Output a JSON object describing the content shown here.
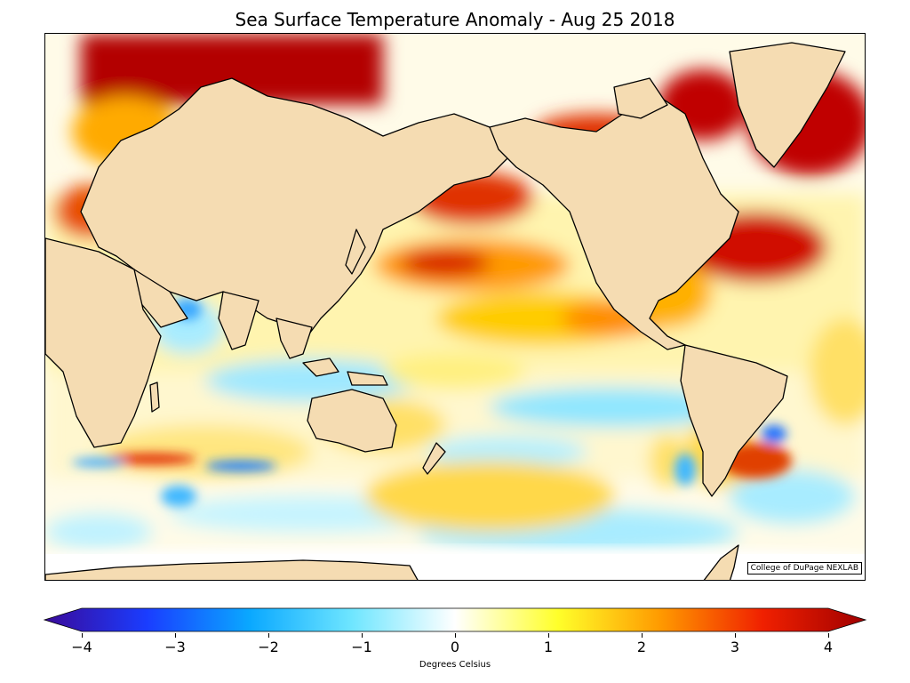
{
  "title": "Sea Surface Temperature Anomaly - Aug 25 2018",
  "credit": "College of DuPage NEXLAB",
  "colorbar": {
    "label": "Degrees Celsius",
    "min": -4,
    "max": 4,
    "ticks": [
      "−4",
      "−3",
      "−2",
      "−1",
      "0",
      "1",
      "2",
      "3",
      "4"
    ],
    "tick_values": [
      -4,
      -3,
      -2,
      -1,
      0,
      1,
      2,
      3,
      4
    ],
    "colors": [
      "#3a0a9a",
      "#1a3dff",
      "#0aa8ff",
      "#6fe6ff",
      "#ffffff",
      "#ffff2a",
      "#ff9a00",
      "#f02000",
      "#a00000"
    ]
  },
  "colors": {
    "land": "#f5dcb2",
    "ocean_neutral": "#ffffff",
    "warm": "#ffcc00",
    "hot": "#c00000",
    "cool": "#9fe8ff"
  }
}
